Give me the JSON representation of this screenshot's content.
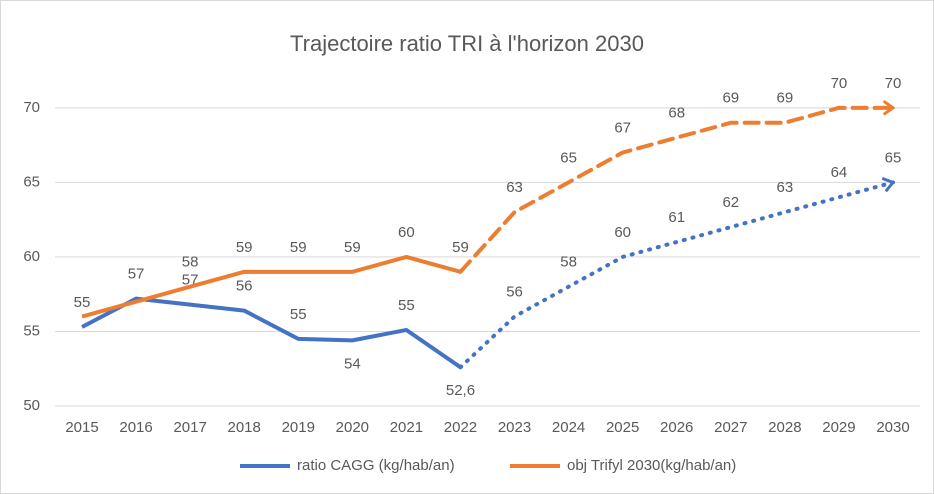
{
  "chart_data": {
    "type": "line",
    "title": "Trajectoire ratio TRI à l'horizon 2030",
    "categories": [
      "2015",
      "2016",
      "2017",
      "2018",
      "2019",
      "2020",
      "2021",
      "2022",
      "2023",
      "2024",
      "2025",
      "2026",
      "2027",
      "2028",
      "2029",
      "2030"
    ],
    "projection_from": "2022",
    "series": [
      {
        "name": "ratio CAGG (kg/hab/an)",
        "color": "#4472c4",
        "projection_style": "dotted",
        "values": [
          55.3,
          57.2,
          56.8,
          56.4,
          54.5,
          54.4,
          55.1,
          52.6,
          56,
          58,
          60,
          61,
          62,
          63,
          64,
          65
        ],
        "value_labels": [
          "55",
          "57",
          "57",
          "56",
          "55",
          "54",
          "55",
          "52,6",
          "56",
          "58",
          "60",
          "61",
          "62",
          "63",
          "64",
          "65"
        ]
      },
      {
        "name": "obj Trifyl 2030(kg/hab/an)",
        "color": "#ed7d31",
        "projection_style": "dashed",
        "values": [
          56,
          57,
          58,
          59,
          59,
          59,
          60,
          59,
          63,
          65,
          67,
          68,
          69,
          69,
          70,
          70
        ],
        "value_labels": [
          null,
          null,
          "58",
          "59",
          "59",
          "59",
          "60",
          "59",
          "63",
          "65",
          "67",
          "68",
          "69",
          "69",
          "70",
          "70"
        ]
      }
    ],
    "ylim": [
      50,
      72
    ],
    "yticks": [
      50,
      55,
      60,
      65,
      70
    ],
    "grid": true,
    "legend": "bottom"
  }
}
